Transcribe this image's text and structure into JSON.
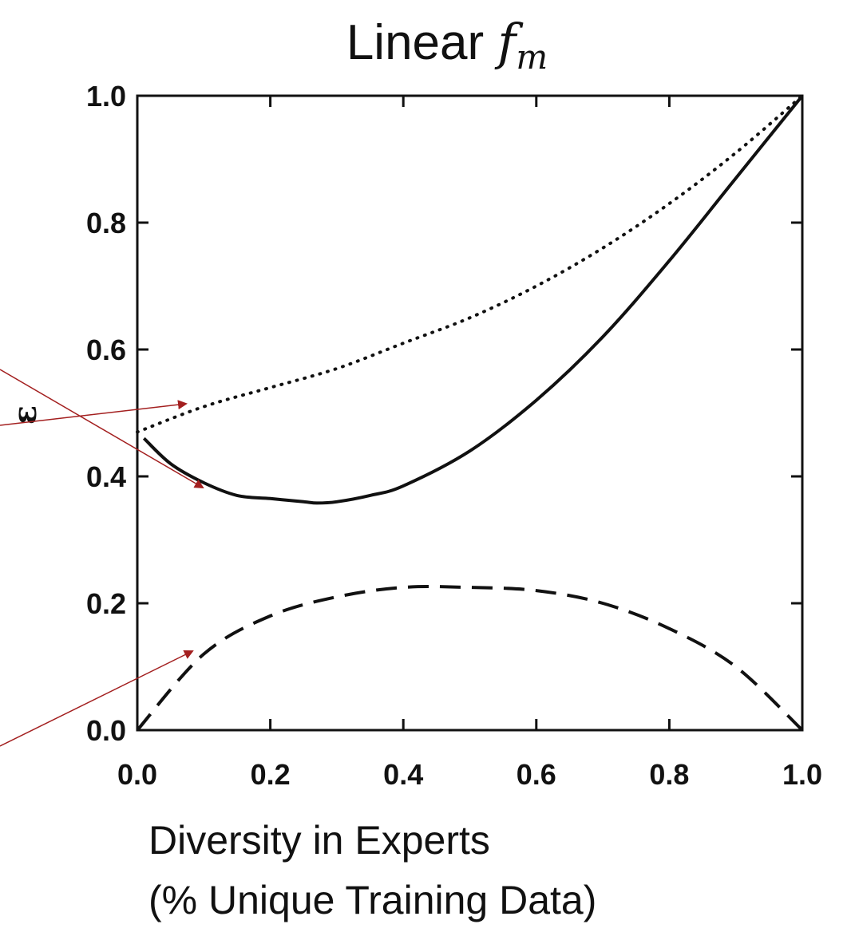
{
  "chart_data": {
    "type": "line",
    "title_main": "Linear ",
    "title_math": "f",
    "title_sub": "m",
    "xlabel_lines": [
      "Diversity in Experts",
      "(% Unique Training Data)"
    ],
    "ylabel": "ε",
    "xlim": [
      0,
      1
    ],
    "ylim": [
      0,
      1
    ],
    "xticks": [
      "0.0",
      "0.2",
      "0.4",
      "0.6",
      "0.8",
      "1.0"
    ],
    "yticks": [
      "0.0",
      "0.2",
      "0.4",
      "0.6",
      "0.8",
      "1.0"
    ],
    "grid": false,
    "series": [
      {
        "style": "dotted",
        "x": [
          0.0,
          0.1,
          0.2,
          0.3,
          0.4,
          0.5,
          0.6,
          0.7,
          0.8,
          0.9,
          1.0
        ],
        "y": [
          0.47,
          0.51,
          0.54,
          0.57,
          0.61,
          0.65,
          0.7,
          0.76,
          0.83,
          0.91,
          1.0
        ]
      },
      {
        "style": "solid",
        "x": [
          0.01,
          0.05,
          0.1,
          0.15,
          0.2,
          0.25,
          0.27,
          0.3,
          0.35,
          0.4,
          0.5,
          0.6,
          0.7,
          0.8,
          0.9,
          1.0
        ],
        "y": [
          0.46,
          0.42,
          0.39,
          0.37,
          0.365,
          0.36,
          0.358,
          0.36,
          0.37,
          0.385,
          0.44,
          0.52,
          0.62,
          0.74,
          0.87,
          1.0
        ]
      },
      {
        "style": "dashed",
        "x": [
          0.0,
          0.1,
          0.2,
          0.3,
          0.4,
          0.5,
          0.6,
          0.7,
          0.8,
          0.9,
          1.0
        ],
        "y": [
          0.0,
          0.12,
          0.18,
          0.21,
          0.225,
          0.225,
          0.22,
          0.2,
          0.16,
          0.1,
          0.0
        ]
      }
    ]
  },
  "annotations": {
    "arrow_color": "#a31f1f"
  }
}
